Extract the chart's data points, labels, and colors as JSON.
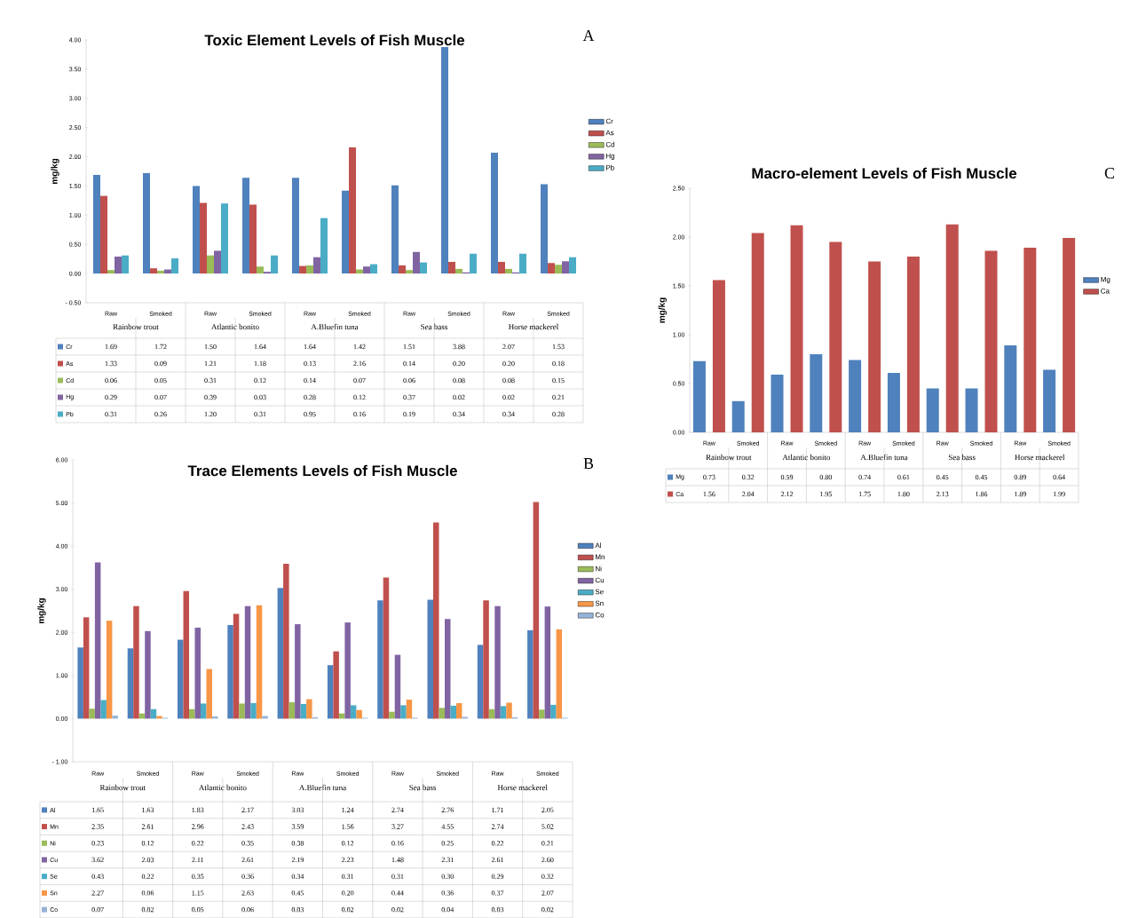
{
  "chart_data": [
    {
      "type": "bar",
      "title": "Toxic Element Levels of Fish Muscle",
      "ylabel": "mg/kg",
      "categories": [
        "Raw",
        "Smoked",
        "Raw",
        "Smoked",
        "Raw",
        "Smoked",
        "Raw",
        "Smoked",
        "Raw",
        "Smoked"
      ],
      "series": [
        {
          "name": "Cr",
          "color": "#4f81bd",
          "values": [
            1.69,
            1.72,
            1.5,
            1.64,
            1.64,
            1.42,
            1.51,
            3.88,
            2.07,
            1.53
          ],
          "value_labels": [
            "1.69",
            "1.72",
            "1.50",
            "1.64",
            "1.64",
            "1.42",
            "1.51",
            "3.88",
            "2.07",
            "1.53"
          ]
        },
        {
          "name": "As",
          "color": "#c0504d",
          "values": [
            1.33,
            0.09,
            1.21,
            1.18,
            0.13,
            2.16,
            0.14,
            0.2,
            0.2,
            0.18
          ],
          "value_labels": [
            "1.33",
            "0.09",
            "1.21",
            "1.18",
            "0.13",
            "2.16",
            "0.14",
            "0.20",
            "0.20",
            "0.18"
          ]
        },
        {
          "name": "Cd",
          "color": "#9bbb59",
          "values": [
            0.06,
            0.05,
            0.31,
            0.12,
            0.14,
            0.07,
            0.06,
            0.08,
            0.08,
            0.15
          ],
          "value_labels": [
            "0.06",
            "0.05",
            "0.31",
            "0.12",
            "0.14",
            "0.07",
            "0.06",
            "0.08",
            "0.08",
            "0.15"
          ]
        },
        {
          "name": "Hg",
          "color": "#8064a2",
          "values": [
            0.29,
            0.07,
            0.39,
            0.03,
            0.28,
            0.12,
            0.37,
            0.02,
            0.02,
            0.21
          ],
          "value_labels": [
            "0.29",
            "0.07",
            "0.39",
            "0.03",
            "0.28",
            "0.12",
            "0.37",
            "0.02",
            "0.02",
            "0.21"
          ]
        },
        {
          "name": "Pb",
          "color": "#4bacc6",
          "values": [
            0.31,
            0.26,
            1.2,
            0.31,
            0.95,
            0.16,
            0.19,
            0.34,
            0.34,
            0.28
          ],
          "value_labels": [
            "0.31",
            "0.26",
            "1.20",
            "0.31",
            "0.95",
            "0.16",
            "0.19",
            "0.34",
            "0.34",
            "0.28"
          ]
        }
      ],
      "ylim": [
        -0.5,
        4.0
      ],
      "yticks": [
        {
          "value": -0.5,
          "label": "- 0.50"
        },
        {
          "value": 0,
          "label": "0.00"
        },
        {
          "value": 0.5,
          "label": "0.50"
        },
        {
          "value": 1,
          "label": "1.00"
        },
        {
          "value": 1.5,
          "label": "1.50"
        },
        {
          "value": 2,
          "label": "2.00"
        },
        {
          "value": 2.5,
          "label": "2.50"
        },
        {
          "value": 3,
          "label": "3.00"
        },
        {
          "value": 3.5,
          "label": "3.50"
        },
        {
          "value": 4,
          "label": "4.00"
        }
      ],
      "legend": "right",
      "annotations": [
        "Rainbow trout",
        "Atlantic bonito",
        "A.Bluefin tuna",
        "Sea bass",
        "Horse mackerel",
        "A"
      ]
    },
    {
      "type": "bar",
      "title": "Trace Elements Levels of Fish Muscle",
      "ylabel": "mg/kg",
      "categories": [
        "Raw",
        "Smoked",
        "Raw",
        "Smoked",
        "Raw",
        "Smoked",
        "Raw",
        "Smoked",
        "Raw",
        "Smoked"
      ],
      "series": [
        {
          "name": "Al",
          "color": "#4f81bd",
          "values": [
            1.65,
            1.63,
            1.83,
            2.17,
            3.03,
            1.24,
            2.74,
            2.76,
            1.71,
            2.05
          ],
          "value_labels": [
            "1.65",
            "1.63",
            "1.83",
            "2.17",
            "3.03",
            "1.24",
            "2.74",
            "2.76",
            "1.71",
            "2.05"
          ]
        },
        {
          "name": "Mn",
          "color": "#c0504d",
          "values": [
            2.35,
            2.61,
            2.96,
            2.43,
            3.59,
            1.56,
            3.27,
            4.55,
            2.74,
            5.02
          ],
          "value_labels": [
            "2.35",
            "2.61",
            "2.96",
            "2.43",
            "3.59",
            "1.56",
            "3.27",
            "4.55",
            "2.74",
            "5.02"
          ]
        },
        {
          "name": "Ni",
          "color": "#9bbb59",
          "values": [
            0.23,
            0.12,
            0.22,
            0.35,
            0.38,
            0.12,
            0.16,
            0.25,
            0.22,
            0.21
          ],
          "value_labels": [
            "0.23",
            "0.12",
            "0.22",
            "0.35",
            "0.38",
            "0.12",
            "0.16",
            "0.25",
            "0.22",
            "0.21"
          ]
        },
        {
          "name": "Cu",
          "color": "#8064a2",
          "values": [
            3.62,
            2.03,
            2.11,
            2.61,
            2.19,
            2.23,
            1.48,
            2.31,
            2.61,
            2.6
          ],
          "value_labels": [
            "3.62",
            "2.03",
            "2.11",
            "2.61",
            "2.19",
            "2.23",
            "1.48",
            "2.31",
            "2.61",
            "2.60"
          ]
        },
        {
          "name": "Se",
          "color": "#4bacc6",
          "values": [
            0.43,
            0.22,
            0.35,
            0.36,
            0.34,
            0.31,
            0.31,
            0.3,
            0.29,
            0.32
          ],
          "value_labels": [
            "0.43",
            "0.22",
            "0.35",
            "0.36",
            "0.34",
            "0.31",
            "0.31",
            "0.30",
            "0.29",
            "0.32"
          ]
        },
        {
          "name": "Sn",
          "color": "#f79646",
          "values": [
            2.27,
            0.06,
            1.15,
            2.63,
            0.45,
            0.2,
            0.44,
            0.36,
            0.37,
            2.07
          ],
          "value_labels": [
            "2.27",
            "0.06",
            "1.15",
            "2.63",
            "0.45",
            "0.20",
            "0.44",
            "0.36",
            "0.37",
            "2.07"
          ]
        },
        {
          "name": "Co",
          "color": "#95b3d7",
          "values": [
            0.07,
            0.02,
            0.05,
            0.06,
            0.03,
            0.02,
            0.02,
            0.04,
            0.03,
            0.02
          ],
          "value_labels": [
            "0.07",
            "0.02",
            "0.05",
            "0.06",
            "0.03",
            "0.02",
            "0.02",
            "0.04",
            "0.03",
            "0.02"
          ]
        }
      ],
      "ylim": [
        -1,
        6
      ],
      "yticks": [
        {
          "value": -1,
          "label": "- 1.00"
        },
        {
          "value": 0,
          "label": "0.00"
        },
        {
          "value": 1,
          "label": "1.00"
        },
        {
          "value": 2,
          "label": "2.00"
        },
        {
          "value": 3,
          "label": "3.00"
        },
        {
          "value": 4,
          "label": "4.00"
        },
        {
          "value": 5,
          "label": "5.00"
        },
        {
          "value": 6,
          "label": "6.00"
        }
      ],
      "legend": "right",
      "annotations": [
        "Rainbow trout",
        "Atlantic bonito",
        "A.Bluefin tuna",
        "Sea bass",
        "Horse mackerel",
        "B"
      ]
    },
    {
      "type": "bar",
      "title": "Macro-element Levels of Fish Muscle",
      "ylabel": "mg/kg",
      "categories": [
        "Raw",
        "Smoked",
        "Raw",
        "Smoked",
        "Raw",
        "Smoked",
        "Raw",
        "Smoked",
        "Raw",
        "Smoked"
      ],
      "series": [
        {
          "name": "Mg",
          "color": "#4f81bd",
          "values": [
            0.73,
            0.32,
            0.59,
            0.8,
            0.74,
            0.61,
            0.45,
            0.45,
            0.89,
            0.64
          ],
          "value_labels": [
            "0.73",
            "0.32",
            "0.59",
            "0.80",
            "0.74",
            "0.61",
            "0.45",
            "0.45",
            "0.89",
            "0.64"
          ]
        },
        {
          "name": "Ca",
          "color": "#c0504d",
          "values": [
            1.56,
            2.04,
            2.12,
            1.95,
            1.75,
            1.8,
            2.13,
            1.86,
            1.89,
            1.99
          ],
          "value_labels": [
            "1.56",
            "2.04",
            "2.12",
            "1.95",
            "1.75",
            "1.80",
            "2.13",
            "1.86",
            "1.89",
            "1.99"
          ]
        }
      ],
      "ylim": [
        0,
        2.5
      ],
      "yticks": [
        {
          "value": 0,
          "label": "0.00"
        },
        {
          "value": 0.5,
          "label": "0.50"
        },
        {
          "value": 1,
          "label": "1.00"
        },
        {
          "value": 1.5,
          "label": "1.50"
        },
        {
          "value": 2,
          "label": "2.00"
        },
        {
          "value": 2.5,
          "label": "2.50"
        }
      ],
      "legend": "right",
      "annotations": [
        "Rainbow trout",
        "Atlantic bonito",
        "A.Bluefin tuna",
        "Sea bass",
        "Horse mackerel",
        "C"
      ]
    }
  ]
}
